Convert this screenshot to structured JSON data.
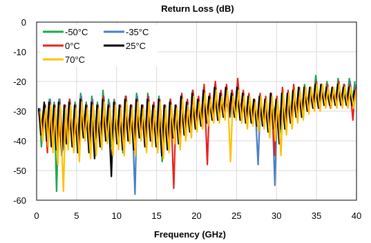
{
  "chart_data": {
    "type": "line",
    "title": "Return Loss (dB)",
    "xlabel": "Frequency  (GHz)",
    "ylabel": "",
    "xlim": [
      0,
      40
    ],
    "ylim": [
      -60,
      0
    ],
    "x_ticks": [
      "0",
      "5",
      "10",
      "15",
      "20",
      "25",
      "30",
      "35",
      "40"
    ],
    "y_ticks": [
      "0",
      "-10",
      "-20",
      "-30",
      "-40",
      "-50",
      "-60"
    ],
    "grid": true,
    "legend_position": "top-left",
    "series": [
      {
        "name": "-50°C",
        "color": "#1aa64a",
        "peaks_x": [
          0.3,
          1.0,
          1.6,
          2.2,
          2.8,
          3.5,
          4.1,
          4.8,
          5.5,
          6.2,
          6.9,
          7.6,
          8.3,
          9.0,
          9.7,
          10.4,
          11.1,
          11.8,
          12.5,
          13.2,
          13.9,
          14.6,
          15.3,
          16.0,
          16.7,
          17.4,
          18.1,
          18.8,
          19.5,
          20.2,
          20.9,
          21.6,
          22.3,
          23.0,
          23.7,
          24.4,
          25.1,
          25.8,
          26.5,
          27.2,
          27.9,
          28.6,
          29.3,
          30.0,
          30.7,
          31.4,
          32.1,
          32.8,
          33.5,
          34.2,
          34.9,
          35.6,
          36.3,
          37.0,
          37.7,
          38.4,
          39.1,
          39.8
        ],
        "peaks_y": [
          -29,
          -28,
          -26,
          -27,
          -26,
          -28,
          -26,
          -27,
          -24,
          -27,
          -25,
          -27,
          -23,
          -26,
          -26,
          -28,
          -25,
          -28,
          -24,
          -28,
          -24,
          -28,
          -25,
          -28,
          -26,
          -29,
          -25,
          -27,
          -23,
          -26,
          -22,
          -25,
          -21,
          -24,
          -22,
          -23,
          -22,
          -24,
          -25,
          -27,
          -25,
          -26,
          -24,
          -26,
          -25,
          -24,
          -23,
          -22,
          -21,
          -22,
          -18,
          -21,
          -20,
          -22,
          -19,
          -21,
          -19,
          -20
        ],
        "nulls_x": [
          0.6,
          1.3,
          1.9,
          2.5,
          3.2,
          3.8,
          4.5,
          5.2,
          5.9,
          6.6,
          7.3,
          8.0,
          8.7,
          9.4,
          10.1,
          10.8,
          11.5,
          12.2,
          12.9,
          13.6,
          14.3,
          15.0,
          15.7,
          16.4,
          17.1,
          17.8,
          18.5,
          19.2,
          19.9,
          20.6,
          21.3,
          22.0,
          22.7,
          23.4,
          24.1,
          24.8,
          25.5,
          26.2,
          26.9,
          27.6,
          28.3,
          29.0,
          29.7,
          30.4,
          31.1,
          31.8,
          32.5,
          33.2,
          33.9,
          34.6,
          35.3,
          36.0,
          36.7,
          37.4,
          38.1,
          38.8,
          39.5
        ],
        "nulls_y": [
          -42,
          -36,
          -40,
          -57,
          -44,
          -39,
          -42,
          -40,
          -35,
          -43,
          -38,
          -40,
          -37,
          -42,
          -39,
          -44,
          -38,
          -42,
          -36,
          -40,
          -37,
          -40,
          -47,
          -41,
          -38,
          -40,
          -37,
          -36,
          -35,
          -33,
          -33,
          -32,
          -32,
          -30,
          -31,
          -30,
          -31,
          -33,
          -32,
          -34,
          -33,
          -35,
          -31,
          -34,
          -33,
          -32,
          -30,
          -30,
          -28,
          -28,
          -27,
          -27,
          -27,
          -28,
          -27,
          -27,
          -27
        ]
      },
      {
        "name": "-35°C",
        "color": "#4a7ec4",
        "peaks_x": [
          0.4,
          1.1,
          1.7,
          2.3,
          2.9,
          3.6,
          4.2,
          4.9,
          5.6,
          6.3,
          7.0,
          7.7,
          8.4,
          9.1,
          9.8,
          10.5,
          11.2,
          11.9,
          12.6,
          13.3,
          14.0,
          14.7,
          15.4,
          16.1,
          16.8,
          17.5,
          18.2,
          18.9,
          19.6,
          20.3,
          21.0,
          21.7,
          22.4,
          23.1,
          23.8,
          24.5,
          25.2,
          25.9,
          26.6,
          27.3,
          28.0,
          28.7,
          29.4,
          30.1,
          30.8,
          31.5,
          32.2,
          32.9,
          33.6,
          34.3,
          35.0,
          35.7,
          36.4,
          37.1,
          37.8,
          38.5,
          39.2,
          39.9
        ],
        "peaks_y": [
          -29,
          -28,
          -26,
          -28,
          -26,
          -28,
          -27,
          -28,
          -25,
          -28,
          -26,
          -28,
          -25,
          -27,
          -27,
          -28,
          -25,
          -28,
          -25,
          -28,
          -25,
          -28,
          -26,
          -28,
          -27,
          -29,
          -26,
          -27,
          -24,
          -27,
          -23,
          -26,
          -22,
          -25,
          -23,
          -24,
          -23,
          -25,
          -26,
          -27,
          -26,
          -27,
          -25,
          -27,
          -26,
          -25,
          -24,
          -23,
          -22,
          -23,
          -20,
          -22,
          -21,
          -22,
          -20,
          -21,
          -20,
          -21
        ],
        "nulls_x": [
          0.7,
          1.4,
          2.0,
          2.6,
          3.3,
          3.9,
          4.6,
          5.3,
          6.0,
          6.7,
          7.4,
          8.1,
          8.8,
          9.5,
          10.2,
          10.9,
          11.6,
          12.3,
          13.0,
          13.7,
          14.4,
          15.1,
          15.8,
          16.5,
          17.2,
          17.9,
          18.6,
          19.3,
          20.0,
          20.7,
          21.4,
          22.1,
          22.8,
          23.5,
          24.2,
          24.9,
          25.6,
          26.3,
          27.0,
          27.7,
          28.4,
          29.1,
          29.8,
          30.5,
          31.2,
          31.9,
          32.6,
          33.3,
          34.0,
          34.7,
          35.4,
          36.1,
          36.8,
          37.5,
          38.2,
          38.9,
          39.6
        ],
        "nulls_y": [
          -40,
          -37,
          -39,
          -42,
          -43,
          -40,
          -41,
          -42,
          -37,
          -41,
          -39,
          -41,
          -38,
          -40,
          -40,
          -42,
          -39,
          -58,
          -37,
          -40,
          -38,
          -41,
          -40,
          -42,
          -38,
          -40,
          -38,
          -37,
          -35,
          -34,
          -34,
          -33,
          -32,
          -31,
          -32,
          -32,
          -33,
          -34,
          -33,
          -48,
          -35,
          -37,
          -55,
          -36,
          -35,
          -34,
          -31,
          -31,
          -29,
          -29,
          -28,
          -28,
          -28,
          -28,
          -28,
          -28,
          -28
        ]
      },
      {
        "name": "0°C",
        "color": "#e8211c",
        "peaks_x": [
          0.35,
          1.05,
          1.65,
          2.25,
          2.85,
          3.55,
          4.15,
          4.85,
          5.55,
          6.25,
          6.95,
          7.65,
          8.35,
          9.05,
          9.75,
          10.45,
          11.15,
          11.85,
          12.55,
          13.25,
          13.95,
          14.65,
          15.35,
          16.05,
          16.75,
          17.45,
          18.15,
          18.85,
          19.55,
          20.25,
          20.95,
          21.65,
          22.35,
          23.05,
          23.75,
          24.45,
          25.15,
          25.85,
          26.55,
          27.25,
          27.95,
          28.65,
          29.35,
          30.05,
          30.75,
          31.45,
          32.15,
          32.85,
          33.55,
          34.25,
          34.95,
          35.65,
          36.35,
          37.05,
          37.75,
          38.45,
          39.15,
          39.85
        ],
        "peaks_y": [
          -30,
          -28,
          -27,
          -28,
          -27,
          -28,
          -26,
          -28,
          -26,
          -28,
          -27,
          -28,
          -25,
          -28,
          -27,
          -28,
          -25,
          -28,
          -26,
          -28,
          -25,
          -27,
          -26,
          -28,
          -26,
          -28,
          -24,
          -26,
          -23,
          -25,
          -21,
          -24,
          -20,
          -23,
          -21,
          -23,
          -19,
          -23,
          -24,
          -26,
          -24,
          -25,
          -24,
          -25,
          -22,
          -23,
          -21,
          -22,
          -22,
          -22,
          -20,
          -21,
          -21,
          -22,
          -20,
          -21,
          -21,
          -22
        ],
        "nulls_x": [
          0.65,
          1.35,
          1.95,
          2.55,
          3.25,
          3.85,
          4.55,
          5.25,
          5.95,
          6.65,
          7.35,
          8.05,
          8.75,
          9.45,
          10.15,
          10.85,
          11.55,
          12.25,
          12.95,
          13.65,
          14.35,
          15.05,
          15.75,
          16.45,
          17.15,
          17.85,
          18.55,
          19.25,
          19.95,
          20.65,
          21.35,
          22.05,
          22.75,
          23.45,
          24.15,
          24.85,
          25.55,
          26.25,
          26.95,
          27.65,
          28.35,
          29.05,
          29.75,
          30.45,
          31.15,
          31.85,
          32.55,
          33.25,
          33.95,
          34.65,
          35.35,
          36.05,
          36.75,
          37.45,
          38.15,
          38.85,
          39.55
        ],
        "nulls_y": [
          -38,
          -44,
          -40,
          -42,
          -42,
          -40,
          -41,
          -43,
          -38,
          -41,
          -39,
          -41,
          -38,
          -41,
          -40,
          -42,
          -38,
          -41,
          -38,
          -41,
          -39,
          -41,
          -40,
          -42,
          -56,
          -40,
          -38,
          -36,
          -35,
          -34,
          -48,
          -33,
          -32,
          -31,
          -31,
          -30,
          -32,
          -34,
          -33,
          -35,
          -34,
          -36,
          -45,
          -35,
          -35,
          -33,
          -32,
          -31,
          -30,
          -29,
          -28,
          -28,
          -29,
          -28,
          -28,
          -28,
          -33
        ]
      },
      {
        "name": "25°C",
        "color": "#000000",
        "peaks_x": [
          0.25,
          0.95,
          1.55,
          2.15,
          2.75,
          3.45,
          4.05,
          4.75,
          5.45,
          6.15,
          6.85,
          7.55,
          8.25,
          8.95,
          9.65,
          10.35,
          11.05,
          11.75,
          12.45,
          13.15,
          13.85,
          14.55,
          15.25,
          15.95,
          16.65,
          17.35,
          18.05,
          18.75,
          19.45,
          20.15,
          20.85,
          21.55,
          22.25,
          22.95,
          23.65,
          24.35,
          25.05,
          25.75,
          26.45,
          27.15,
          27.85,
          28.55,
          29.25,
          29.95,
          30.65,
          31.35,
          32.05,
          32.75,
          33.45,
          34.15,
          34.85,
          35.55,
          36.25,
          36.95,
          37.65,
          38.35,
          39.05,
          39.75
        ],
        "peaks_y": [
          -29,
          -27,
          -27,
          -28,
          -27,
          -28,
          -27,
          -28,
          -26,
          -28,
          -27,
          -28,
          -26,
          -28,
          -27,
          -28,
          -26,
          -28,
          -26,
          -28,
          -26,
          -28,
          -26,
          -28,
          -27,
          -28,
          -25,
          -27,
          -24,
          -26,
          -23,
          -25,
          -22,
          -24,
          -22,
          -24,
          -22,
          -24,
          -25,
          -26,
          -25,
          -26,
          -24,
          -26,
          -24,
          -24,
          -23,
          -22,
          -22,
          -22,
          -21,
          -21,
          -22,
          -22,
          -21,
          -22,
          -22,
          -23
        ],
        "nulls_x": [
          0.55,
          1.25,
          1.85,
          2.45,
          3.15,
          3.75,
          4.45,
          5.15,
          5.85,
          6.55,
          7.25,
          7.95,
          8.65,
          9.35,
          10.05,
          10.75,
          11.45,
          12.15,
          12.85,
          13.55,
          14.25,
          14.95,
          15.65,
          16.35,
          17.05,
          17.75,
          18.45,
          19.15,
          19.85,
          20.55,
          21.25,
          21.95,
          22.65,
          23.35,
          24.05,
          24.75,
          25.45,
          26.15,
          26.85,
          27.55,
          28.25,
          28.95,
          29.65,
          30.35,
          31.05,
          31.75,
          32.45,
          33.15,
          33.85,
          34.55,
          35.25,
          35.95,
          36.65,
          37.35,
          38.05,
          38.75,
          39.45
        ],
        "nulls_y": [
          -38,
          -40,
          -42,
          -43,
          -45,
          -41,
          -42,
          -44,
          -39,
          -44,
          -46,
          -42,
          -40,
          -52,
          -41,
          -43,
          -40,
          -43,
          -39,
          -42,
          -40,
          -42,
          -45,
          -43,
          -39,
          -41,
          -38,
          -37,
          -36,
          -35,
          -34,
          -33,
          -33,
          -32,
          -32,
          -32,
          -33,
          -34,
          -34,
          -35,
          -35,
          -37,
          -36,
          -41,
          -36,
          -34,
          -32,
          -32,
          -30,
          -29,
          -29,
          -28,
          -28,
          -28,
          -28,
          -28,
          -28
        ]
      },
      {
        "name": "70°C",
        "color": "#ffc000",
        "peaks_x": [
          0.45,
          1.15,
          1.75,
          2.35,
          2.95,
          3.65,
          4.25,
          4.95,
          5.65,
          6.35,
          7.05,
          7.75,
          8.45,
          9.15,
          9.85,
          10.55,
          11.25,
          11.95,
          12.65,
          13.35,
          14.05,
          14.75,
          15.45,
          16.15,
          16.85,
          17.55,
          18.25,
          18.95,
          19.65,
          20.35,
          21.05,
          21.75,
          22.45,
          23.15,
          23.85,
          24.55,
          25.25,
          25.95,
          26.65,
          27.35,
          28.05,
          28.75,
          29.45,
          30.15,
          30.85,
          31.55,
          32.25,
          32.95,
          33.65,
          34.35,
          35.05,
          35.75,
          36.45,
          37.15,
          37.85,
          38.55,
          39.25,
          39.95
        ],
        "peaks_y": [
          -30,
          -29,
          -28,
          -29,
          -28,
          -29,
          -28,
          -29,
          -27,
          -29,
          -28,
          -29,
          -27,
          -29,
          -28,
          -29,
          -27,
          -29,
          -27,
          -29,
          -27,
          -29,
          -27,
          -29,
          -28,
          -29,
          -26,
          -28,
          -25,
          -27,
          -24,
          -26,
          -23,
          -25,
          -23,
          -25,
          -23,
          -25,
          -25,
          -27,
          -25,
          -26,
          -25,
          -26,
          -24,
          -24,
          -23,
          -23,
          -22,
          -22,
          -21,
          -21,
          -22,
          -22,
          -21,
          -22,
          -22,
          -23
        ],
        "nulls_x": [
          0.75,
          1.45,
          2.05,
          2.65,
          3.35,
          3.95,
          4.65,
          5.35,
          6.05,
          6.75,
          7.45,
          8.15,
          8.85,
          9.55,
          10.25,
          10.95,
          11.65,
          12.35,
          13.05,
          13.75,
          14.45,
          15.15,
          15.85,
          16.55,
          17.25,
          17.95,
          18.65,
          19.35,
          20.05,
          20.75,
          21.45,
          22.15,
          22.85,
          23.55,
          24.25,
          24.95,
          25.65,
          26.35,
          27.05,
          27.75,
          28.45,
          29.15,
          29.85,
          30.55,
          31.25,
          31.95,
          32.65,
          33.35,
          34.05,
          34.75,
          35.45,
          36.15,
          36.85,
          37.55,
          38.25,
          38.95,
          39.65
        ],
        "nulls_y": [
          -40,
          -42,
          -44,
          -48,
          -57,
          -43,
          -44,
          -47,
          -40,
          -46,
          -45,
          -43,
          -41,
          -45,
          -43,
          -45,
          -41,
          -45,
          -40,
          -44,
          -42,
          -44,
          -46,
          -44,
          -41,
          -43,
          -40,
          -39,
          -37,
          -36,
          -35,
          -34,
          -34,
          -33,
          -47,
          -33,
          -34,
          -36,
          -35,
          -37,
          -36,
          -39,
          -40,
          -45,
          -38,
          -36,
          -34,
          -33,
          -31,
          -30,
          -30,
          -29,
          -29,
          -29,
          -29,
          -29,
          -29
        ]
      }
    ]
  }
}
